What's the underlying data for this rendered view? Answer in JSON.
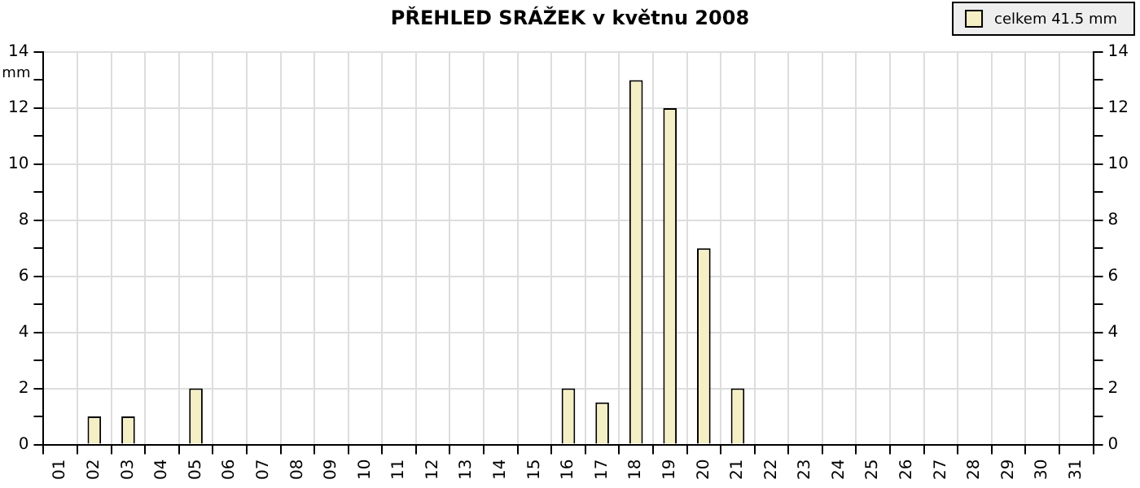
{
  "chart_data": {
    "type": "bar",
    "title": "PŘEHLED SRÁŽEK v květnu 2008",
    "ylabel": "mm",
    "categories": [
      "01",
      "02",
      "03",
      "04",
      "05",
      "06",
      "07",
      "08",
      "09",
      "10",
      "11",
      "12",
      "13",
      "14",
      "15",
      "16",
      "17",
      "18",
      "19",
      "20",
      "21",
      "22",
      "23",
      "24",
      "25",
      "26",
      "27",
      "28",
      "29",
      "30",
      "31"
    ],
    "series": [
      {
        "name": "celkem 41.5 mm",
        "color": "#f5efc6",
        "values": [
          0,
          1,
          1,
          0,
          2,
          0,
          0,
          0,
          0,
          0,
          0,
          0,
          0,
          0,
          0,
          2,
          1.5,
          13,
          12,
          7,
          2,
          0,
          0,
          0,
          0,
          0,
          0,
          0,
          0,
          0,
          0
        ]
      }
    ],
    "ylim": [
      0,
      14
    ],
    "yticks": [
      0,
      {
        "value": 1,
        "label": null
      },
      2,
      {
        "value": 3,
        "label": null
      },
      4,
      {
        "value": 5,
        "label": null
      },
      6,
      {
        "value": 7,
        "label": null
      },
      8,
      {
        "value": 9,
        "label": null
      },
      10,
      {
        "value": 11,
        "label": null
      },
      12,
      {
        "value": 13,
        "label": null
      },
      14
    ],
    "y2lim": [
      0,
      14
    ],
    "y2ticks": [
      0,
      {
        "value": 1,
        "label": null
      },
      2,
      {
        "value": 3,
        "label": null
      },
      4,
      {
        "value": 5,
        "label": null
      },
      6,
      {
        "value": 7,
        "label": null
      },
      8,
      {
        "value": 9,
        "label": null
      },
      10,
      {
        "value": 11,
        "label": null
      },
      12,
      {
        "value": 13,
        "label": null
      },
      14
    ],
    "grid": true,
    "legend": "top right"
  }
}
